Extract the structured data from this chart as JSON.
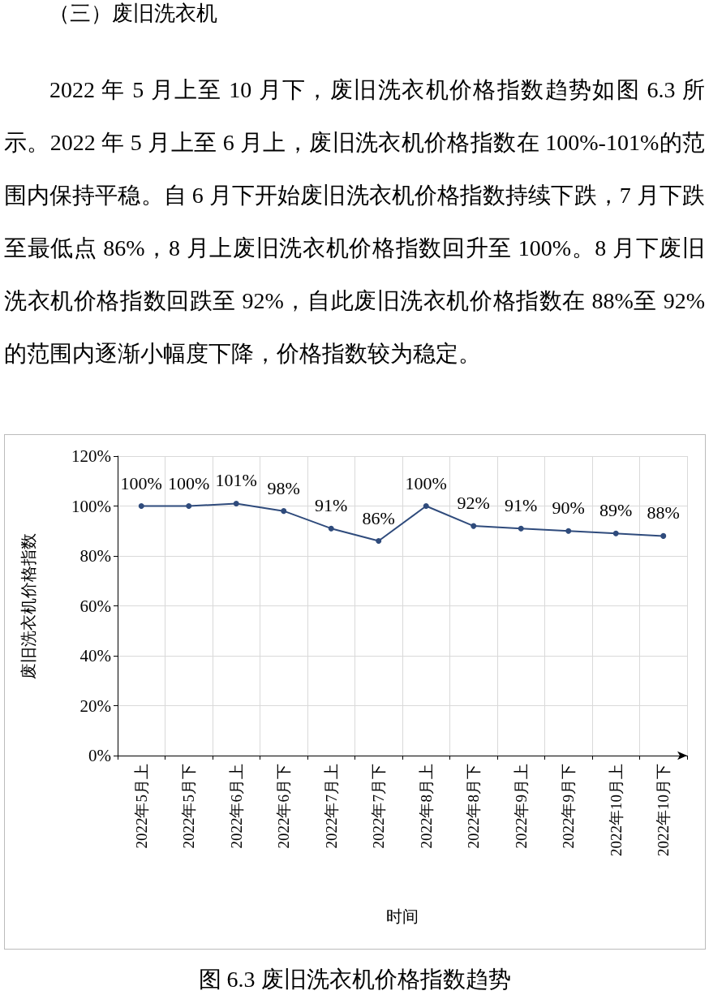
{
  "chart_data": {
    "type": "line",
    "title": "图 6.3  废旧洗衣机价格指数趋势",
    "annotations": [
      "（三）废旧洗衣机",
      "2022 年 5 月上至 10 月下，废旧洗衣机价格指数趋势如图 6.3 所示。2022 年 5 月上至 6 月上，废旧洗衣机价格指数在 100%-101%的范围内保持平稳。自 6 月下开始废旧洗衣机价格指数持续下跌，7 月下跌至最低点 86%，8 月上废旧洗衣机价格指数回升至 100%。8 月下废旧洗衣机价格指数回跌至 92%，自此废旧洗衣机价格指数在 88%至 92%的范围内逐渐小幅度下降，价格指数较为稳定。"
    ],
    "xlabel": "时间",
    "ylabel": "废旧洗衣机价格指数",
    "categories": [
      "2022年5月上",
      "2022年5月下",
      "2022年6月上",
      "2022年6月下",
      "2022年7月上",
      "2022年7月下",
      "2022年8月上",
      "2022年8月下",
      "2022年9月上",
      "2022年9月下",
      "2022年10月上",
      "2022年10月下"
    ],
    "series": [
      {
        "color": "#2f4b7c",
        "values": [
          100,
          100,
          101,
          98,
          91,
          86,
          100,
          92,
          91,
          90,
          89,
          88
        ],
        "value_labels": [
          "100%",
          "100%",
          "101%",
          "98%",
          "91%",
          "86%",
          "100%",
          "92%",
          "91%",
          "90%",
          "89%",
          "88%"
        ]
      }
    ],
    "ylim": [
      0,
      120
    ],
    "yticks": [
      {
        "value": 0,
        "label": "0%"
      },
      {
        "value": 20,
        "label": "20%"
      },
      {
        "value": 40,
        "label": "40%"
      },
      {
        "value": 60,
        "label": "60%"
      },
      {
        "value": 80,
        "label": "80%"
      },
      {
        "value": 100,
        "label": "100%"
      },
      {
        "value": 120,
        "label": "120%"
      }
    ],
    "grid": true,
    "marker": "circle",
    "line_style": "solid"
  }
}
